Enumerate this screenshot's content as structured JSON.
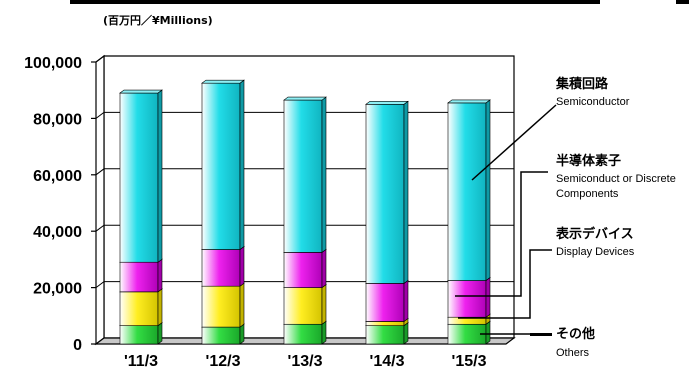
{
  "header": {
    "unit_label": "(百万円／¥Millions)"
  },
  "chart_data": {
    "type": "bar",
    "stacked": true,
    "categories": [
      "'11/3",
      "'12/3",
      "'13/3",
      "'14/3",
      "'15/3"
    ],
    "ylim": [
      0,
      100000
    ],
    "yticks": [
      "0",
      "20,000",
      "40,000",
      "60,000",
      "80,000",
      "100,000"
    ],
    "grid": true,
    "series": [
      {
        "name": "その他 Others",
        "color": "#33dd44",
        "values": [
          6500,
          6000,
          7000,
          6500,
          7000
        ]
      },
      {
        "name": "表示デバイス Display Devices",
        "color": "#ffee22",
        "values": [
          12000,
          14500,
          13000,
          1500,
          2500
        ]
      },
      {
        "name": "半導体素子 Semiconductor Discrete Components",
        "color": "#ee22ee",
        "values": [
          10500,
          13000,
          12500,
          13500,
          13000
        ]
      },
      {
        "name": "集積回路 Semiconductor",
        "color": "#22dde8",
        "values": [
          60000,
          59000,
          54000,
          63500,
          63000
        ]
      }
    ]
  },
  "annotations": [
    {
      "jp": "集積回路",
      "en": "Semiconductor"
    },
    {
      "jp": "半導体素子",
      "en": "Semiconduct or Discrete",
      "en2": "Components"
    },
    {
      "jp": "表示デバイス",
      "en": "Display Devices"
    },
    {
      "jp": "その他",
      "en": "Others"
    }
  ]
}
